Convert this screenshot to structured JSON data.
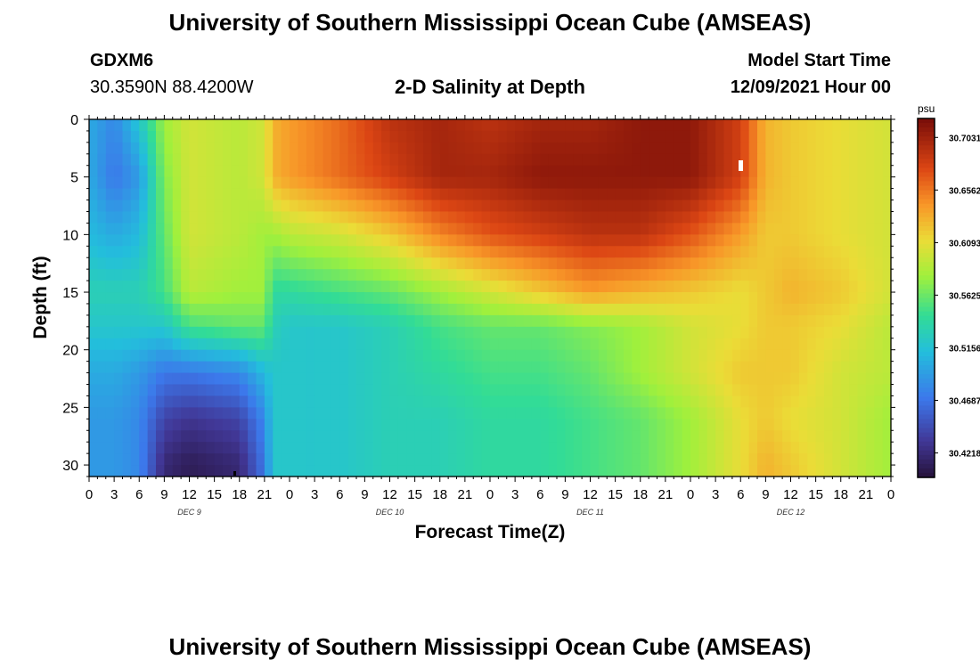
{
  "title": "University of Southern Mississippi Ocean Cube (AMSEAS)",
  "footer_title": "University of Southern Mississippi Ocean Cube (AMSEAS)",
  "station": {
    "id": "GDXM6",
    "coords": "30.3590N  88.4200W"
  },
  "subtitle": "2-D Salinity at Depth",
  "model_start": {
    "label": "Model Start Time",
    "value": "12/09/2021 Hour 00"
  },
  "chart_data": {
    "type": "heatmap",
    "title": "2-D Salinity at Depth",
    "xlabel": "Forecast Time(Z)",
    "ylabel": "Depth (ft)",
    "x_tick_labels": [
      "0",
      "3",
      "6",
      "9",
      "12",
      "15",
      "18",
      "21",
      "0",
      "3",
      "6",
      "9",
      "12",
      "15",
      "18",
      "21",
      "0",
      "3",
      "6",
      "9",
      "12",
      "15",
      "18",
      "21",
      "0",
      "3",
      "6",
      "9",
      "12",
      "15",
      "18",
      "21",
      "0"
    ],
    "x_range_hours": [
      0,
      96
    ],
    "day_labels": [
      {
        "label": "DEC 9",
        "hour": 12
      },
      {
        "label": "DEC 10",
        "hour": 36
      },
      {
        "label": "DEC 11",
        "hour": 60
      },
      {
        "label": "DEC 12",
        "hour": 84
      }
    ],
    "y_ticks": [
      0,
      5,
      10,
      15,
      20,
      25,
      30
    ],
    "ylim": [
      0,
      31
    ],
    "colorbar": {
      "unit": "psu",
      "ticks": [
        "30.7031",
        "30.6562",
        "30.6093",
        "30.5625",
        "30.5156",
        "30.4687",
        "30.4218"
      ],
      "min": 30.4,
      "max": 30.72
    },
    "salinity_field_psu": {
      "hours": [
        0,
        3,
        6,
        9,
        12,
        18,
        21,
        22,
        24,
        30,
        36,
        42,
        48,
        54,
        60,
        66,
        72,
        78,
        81,
        84,
        90,
        96
      ],
      "depths_ft": [
        0,
        5,
        10,
        15,
        18,
        22,
        26,
        30
      ],
      "values": [
        [
          30.5,
          30.48,
          30.52,
          30.58,
          30.6,
          30.59,
          30.6,
          30.63,
          30.64,
          30.66,
          30.69,
          30.7,
          30.69,
          30.7,
          30.7,
          30.71,
          30.71,
          30.68,
          30.63,
          30.62,
          30.61,
          30.6
        ],
        [
          30.5,
          30.47,
          30.49,
          30.57,
          30.6,
          30.59,
          30.6,
          30.63,
          30.64,
          30.66,
          30.68,
          30.7,
          30.7,
          30.71,
          30.71,
          30.71,
          30.71,
          30.68,
          30.63,
          30.62,
          30.61,
          30.6
        ],
        [
          30.51,
          30.5,
          30.51,
          30.56,
          30.6,
          30.59,
          30.58,
          30.58,
          30.59,
          30.6,
          30.62,
          30.65,
          30.67,
          30.68,
          30.69,
          30.69,
          30.67,
          30.64,
          30.62,
          30.62,
          30.61,
          30.6
        ],
        [
          30.53,
          30.53,
          30.53,
          30.55,
          30.59,
          30.58,
          30.58,
          30.54,
          30.54,
          30.55,
          30.56,
          30.58,
          30.6,
          30.62,
          30.64,
          30.63,
          30.62,
          30.61,
          30.62,
          30.63,
          30.62,
          30.6
        ],
        [
          30.52,
          30.52,
          30.52,
          30.52,
          30.55,
          30.56,
          30.56,
          30.53,
          30.52,
          30.52,
          30.53,
          30.55,
          30.56,
          30.56,
          30.57,
          30.58,
          30.6,
          30.61,
          30.62,
          30.62,
          30.61,
          30.59
        ],
        [
          30.5,
          30.5,
          30.49,
          30.47,
          30.47,
          30.48,
          30.51,
          30.52,
          30.52,
          30.52,
          30.53,
          30.54,
          30.55,
          30.55,
          30.56,
          30.58,
          30.6,
          30.62,
          30.62,
          30.62,
          30.6,
          30.59
        ],
        [
          30.49,
          30.49,
          30.48,
          30.44,
          30.43,
          30.44,
          30.48,
          30.52,
          30.52,
          30.52,
          30.53,
          30.53,
          30.54,
          30.54,
          30.55,
          30.56,
          30.58,
          30.61,
          30.62,
          30.61,
          30.6,
          30.58
        ],
        [
          30.49,
          30.49,
          30.48,
          30.42,
          30.41,
          30.42,
          30.47,
          30.52,
          30.52,
          30.52,
          30.53,
          30.53,
          30.54,
          30.54,
          30.55,
          30.56,
          30.58,
          30.61,
          30.63,
          30.62,
          30.6,
          30.58
        ]
      ]
    }
  }
}
